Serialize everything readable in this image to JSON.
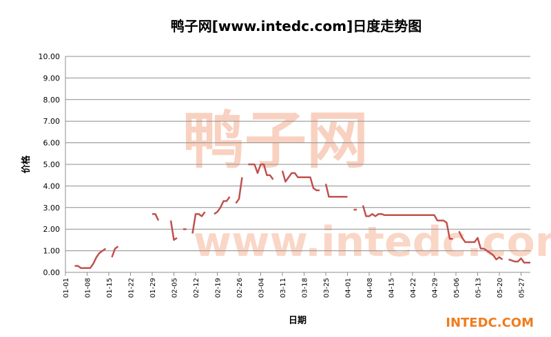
{
  "chart_data": {
    "type": "line",
    "title": "鸭子网[www.intedc.com]日度走势图",
    "x_label": "日期",
    "y_label": "价格",
    "watermark_logo_text": "鸭子网",
    "watermark_url_text": "www.intedc.com",
    "watermark_brand": "INTEDC.COM",
    "categories": [
      "01-01",
      null,
      null,
      null,
      null,
      null,
      null,
      "01-08",
      null,
      null,
      null,
      null,
      null,
      null,
      "01-15",
      null,
      null,
      null,
      null,
      null,
      null,
      "01-22",
      null,
      null,
      null,
      null,
      null,
      null,
      "01-29",
      null,
      null,
      null,
      null,
      null,
      null,
      "02-05",
      null,
      null,
      null,
      null,
      null,
      null,
      "02-12",
      null,
      null,
      null,
      null,
      null,
      null,
      "02-19",
      null,
      null,
      null,
      null,
      null,
      null,
      "02-26",
      null,
      null,
      null,
      null,
      null,
      null,
      "03-04",
      null,
      null,
      null,
      null,
      null,
      null,
      "03-11",
      null,
      null,
      null,
      null,
      null,
      null,
      "03-18",
      null,
      null,
      null,
      null,
      null,
      null,
      "03-25",
      null,
      null,
      null,
      null,
      null,
      null,
      "04-01",
      null,
      null,
      null,
      null,
      null,
      null,
      "04-08",
      null,
      null,
      null,
      null,
      null,
      null,
      "04-15",
      null,
      null,
      null,
      null,
      null,
      null,
      "04-22",
      null,
      null,
      null,
      null,
      null,
      null,
      "04-29",
      null,
      null,
      null,
      null,
      null,
      null,
      "05-06",
      null,
      null,
      null,
      null,
      null,
      null,
      "05-13",
      null,
      null,
      null,
      null,
      null,
      null,
      "05-20",
      null,
      null,
      null,
      null,
      null,
      null,
      "05-27",
      null,
      null,
      null
    ],
    "series": [
      {
        "color": "#c0504d",
        "values": [
          null,
          null,
          null,
          0.3,
          0.3,
          0.2,
          0.2,
          0.2,
          0.2,
          0.4,
          0.7,
          0.9,
          1.0,
          1.1,
          null,
          0.7,
          1.1,
          1.2,
          null,
          null,
          null,
          null,
          null,
          null,
          null,
          null,
          null,
          null,
          2.7,
          2.7,
          2.4,
          null,
          null,
          null,
          2.4,
          1.5,
          1.6,
          null,
          2.0,
          2.0,
          null,
          1.8,
          2.7,
          2.7,
          2.6,
          2.8,
          null,
          null,
          2.7,
          2.8,
          3.0,
          3.3,
          3.3,
          3.5,
          null,
          3.2,
          3.4,
          4.4,
          null,
          5.0,
          5.0,
          5.0,
          4.6,
          5.0,
          5.0,
          4.5,
          4.5,
          4.3,
          null,
          null,
          4.7,
          4.2,
          4.4,
          4.6,
          4.6,
          4.4,
          4.4,
          4.4,
          4.4,
          4.4,
          3.9,
          3.8,
          3.8,
          null,
          4.1,
          3.5,
          3.5,
          3.5,
          3.5,
          3.5,
          3.5,
          3.5,
          null,
          2.9,
          2.9,
          null,
          3.1,
          2.6,
          2.6,
          2.7,
          2.6,
          2.7,
          2.7,
          2.65,
          2.65,
          2.65,
          2.65,
          2.65,
          2.65,
          2.65,
          2.65,
          2.65,
          2.65,
          2.65,
          2.65,
          2.65,
          2.65,
          2.65,
          2.65,
          2.65,
          2.4,
          2.4,
          2.4,
          2.3,
          1.55,
          1.55,
          null,
          1.9,
          1.6,
          1.4,
          1.4,
          1.4,
          1.4,
          1.6,
          1.1,
          1.1,
          1.0,
          0.9,
          0.8,
          0.6,
          0.7,
          0.6,
          null,
          0.6,
          0.55,
          0.5,
          0.5,
          0.65,
          0.45,
          0.45,
          0.45
        ]
      }
    ],
    "ylim": [
      0,
      10
    ],
    "yticks": [
      {
        "value": 0,
        "label": "0.00"
      },
      {
        "value": 1,
        "label": "1.00"
      },
      {
        "value": 2,
        "label": "2.00"
      },
      {
        "value": 3,
        "label": "3.00"
      },
      {
        "value": 4,
        "label": "4.00"
      },
      {
        "value": 5,
        "label": "5.00"
      },
      {
        "value": 6,
        "label": "6.00"
      },
      {
        "value": 7,
        "label": "7.00"
      },
      {
        "value": 8,
        "label": "8.00"
      },
      {
        "value": 9,
        "label": "9.00"
      },
      {
        "value": 10,
        "label": "10.00"
      }
    ],
    "grid": true
  }
}
